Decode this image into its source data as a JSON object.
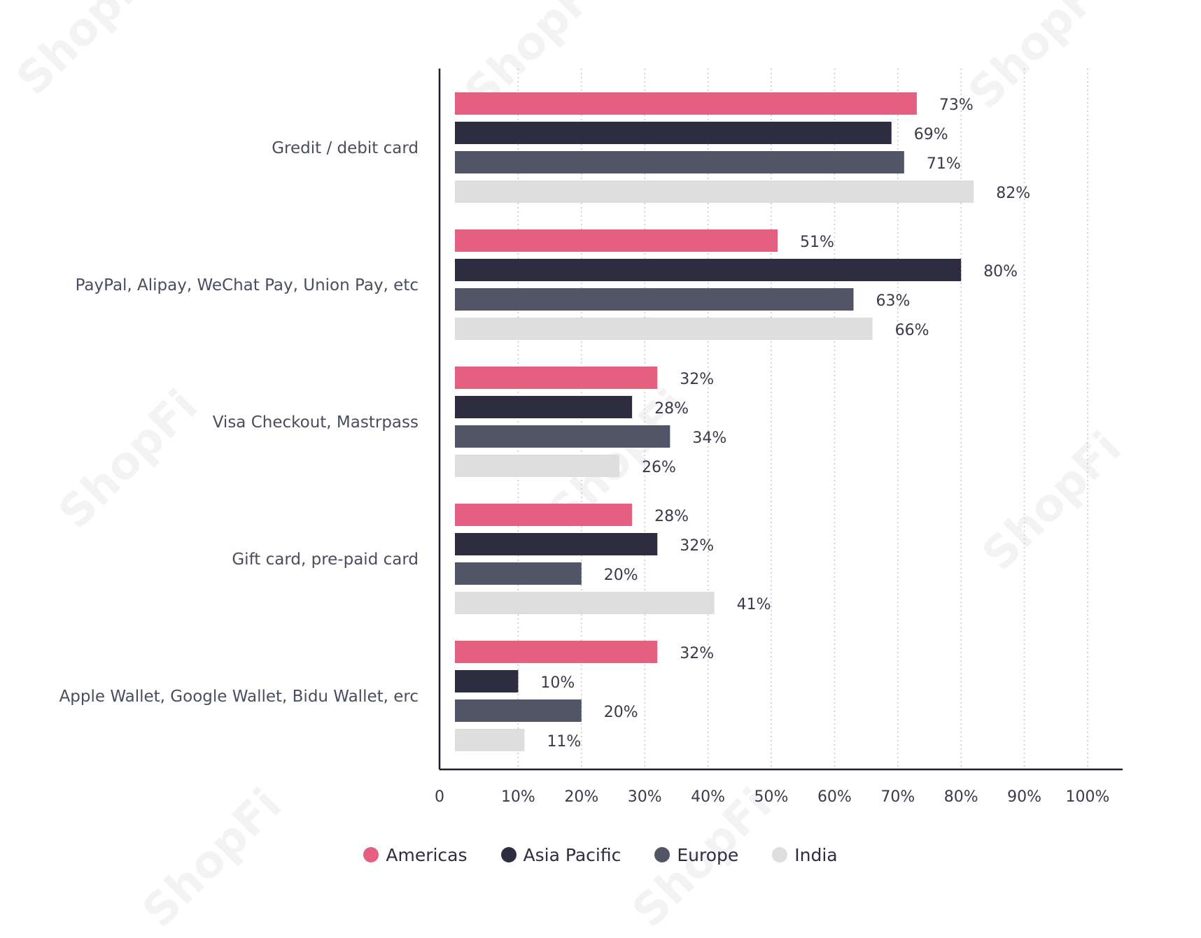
{
  "watermark_text": "ShopFi",
  "chart_data": {
    "type": "bar",
    "orientation": "horizontal",
    "categories": [
      "Gredit / debit card",
      "PayPal, Alipay, WeChat Pay, Union Pay, etc",
      "Visa Checkout, Mastrpass",
      "Gift card, pre-paid card",
      "Apple Wallet, Google Wallet, Bidu Wallet, erc"
    ],
    "series": [
      {
        "name": "Americas",
        "color": "#e56080",
        "values": [
          73,
          51,
          32,
          28,
          32
        ]
      },
      {
        "name": "Asia Pacific",
        "color": "#2e2d3f",
        "values": [
          69,
          80,
          28,
          32,
          10
        ]
      },
      {
        "name": "Europe",
        "color": "#525566",
        "values": [
          71,
          63,
          34,
          20,
          20
        ]
      },
      {
        "name": "India",
        "color": "#dedede",
        "values": [
          82,
          66,
          26,
          41,
          11
        ]
      }
    ],
    "value_suffix": "%",
    "xlim": [
      0,
      100
    ],
    "xticks": [
      0,
      10,
      20,
      30,
      40,
      50,
      60,
      70,
      80,
      90,
      100
    ],
    "xtick_labels": [
      "0",
      "10%",
      "20%",
      "30%",
      "40%",
      "50%",
      "60%",
      "70%",
      "80%",
      "90%",
      "100%"
    ],
    "grid": "vertical dotted",
    "legend_position": "bottom",
    "data_labels": true
  }
}
